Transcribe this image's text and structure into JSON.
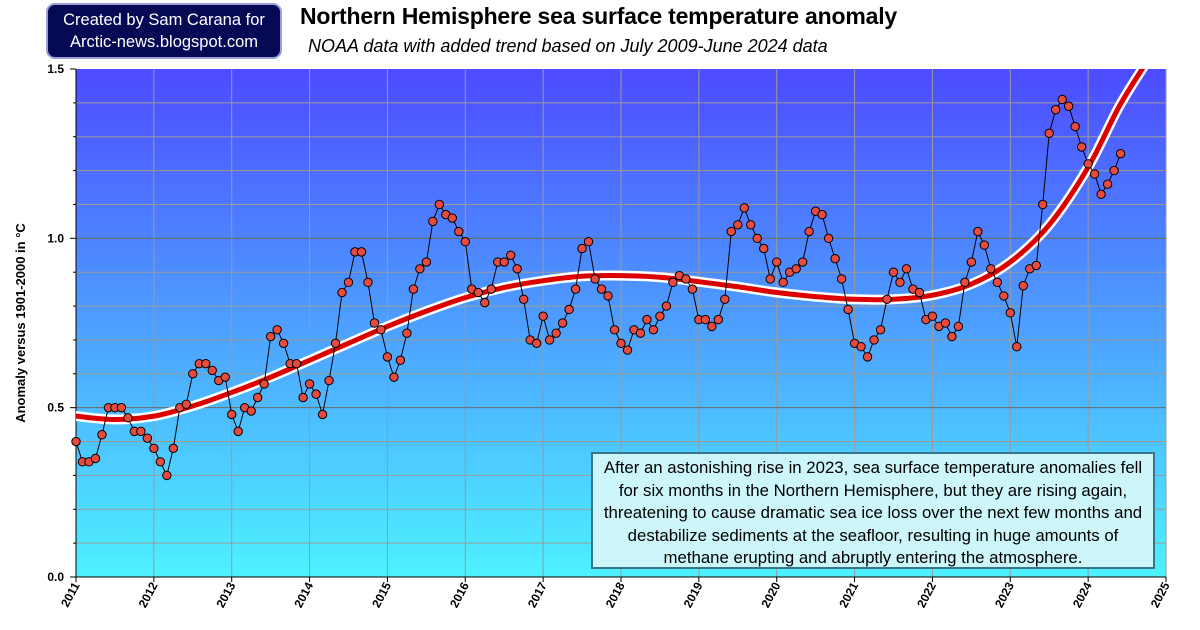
{
  "badge": {
    "line1": "Created by Sam Carana for",
    "line2": "Arctic-news.blogspot.com"
  },
  "colors": {
    "plot_top": "#4d4bff",
    "plot_bottom": "#4df2ff",
    "trend_line": "#dd0000",
    "trend_halo": "#ffffff",
    "marker_fill": "#e84a3e",
    "data_line": "#000000",
    "grid": "#9a9a9a"
  },
  "chart_data": {
    "type": "line",
    "title": "Northern Hemisphere sea surface temperature anomaly",
    "subtitle": "NOAA data with added trend based on July 2009-June 2024 data",
    "xlabel": "",
    "ylabel": "Anomaly versus 1901-2000 in °C",
    "xlim": [
      2011,
      2025
    ],
    "ylim": [
      0,
      1.5
    ],
    "x_ticks": [
      "2011",
      "2012",
      "2013",
      "2014",
      "2015",
      "2016",
      "2017",
      "2018",
      "2019",
      "2020",
      "2021",
      "2022",
      "2023",
      "2024",
      "2025"
    ],
    "y_ticks": [
      "0.0",
      "0.5",
      "1.0",
      "1.5"
    ],
    "grid": true,
    "annotation": "After an astonishing rise in 2023, sea surface temperature anomalies fell for six months in the Northern Hemisphere, but they are rising again, threatening to cause dramatic sea ice loss over the next few months and destabilize sediments at the seafloor, resulting in huge amounts of methane erupting and abruptly entering the atmosphere.",
    "series": [
      {
        "start": "2011-01",
        "values": [
          0.4,
          0.34,
          0.34,
          0.35,
          0.42,
          0.5,
          0.5,
          0.5,
          0.47,
          0.43,
          0.43,
          0.41,
          0.38,
          0.34,
          0.3,
          0.38,
          0.5,
          0.51,
          0.6,
          0.63,
          0.63,
          0.61,
          0.58,
          0.59,
          0.48,
          0.43,
          0.5,
          0.49,
          0.53,
          0.57,
          0.71,
          0.73,
          0.69,
          0.63,
          0.63,
          0.53,
          0.57,
          0.54,
          0.48,
          0.58,
          0.69,
          0.84,
          0.87,
          0.96,
          0.96,
          0.87,
          0.75,
          0.73,
          0.65,
          0.59,
          0.64,
          0.72,
          0.85,
          0.91,
          0.93,
          1.05,
          1.1,
          1.07,
          1.06,
          1.02,
          0.99,
          0.85,
          0.84,
          0.81,
          0.85,
          0.93,
          0.93,
          0.95,
          0.91,
          0.82,
          0.7,
          0.69,
          0.77,
          0.7,
          0.72,
          0.75,
          0.79,
          0.85,
          0.97,
          0.99,
          0.88,
          0.85,
          0.83,
          0.73,
          0.69,
          0.67,
          0.73,
          0.72,
          0.76,
          0.73,
          0.77,
          0.8,
          0.87,
          0.89,
          0.88,
          0.85,
          0.76,
          0.76,
          0.74,
          0.76,
          0.82,
          1.02,
          1.04,
          1.09,
          1.04,
          1.0,
          0.97,
          0.88,
          0.93,
          0.87,
          0.9,
          0.91,
          0.93,
          1.02,
          1.08,
          1.07,
          1.0,
          0.94,
          0.88,
          0.79,
          0.69,
          0.68,
          0.65,
          0.7,
          0.73,
          0.82,
          0.9,
          0.87,
          0.91,
          0.85,
          0.84,
          0.76,
          0.77,
          0.74,
          0.75,
          0.71,
          0.74,
          0.87,
          0.93,
          1.02,
          0.98,
          0.91,
          0.87,
          0.83,
          0.78,
          0.68,
          0.86,
          0.91,
          0.92,
          1.1,
          1.31,
          1.38,
          1.41,
          1.39,
          1.33,
          1.27,
          1.22,
          1.19,
          1.13,
          1.16,
          1.2,
          1.25
        ]
      }
    ],
    "trend": {
      "x": [
        2011.0,
        2011.5,
        2012.0,
        2012.5,
        2013.0,
        2013.5,
        2014.0,
        2014.5,
        2015.0,
        2015.5,
        2016.0,
        2016.5,
        2017.0,
        2017.5,
        2018.0,
        2018.5,
        2019.0,
        2019.5,
        2020.0,
        2020.5,
        2021.0,
        2021.5,
        2022.0,
        2022.5,
        2023.0,
        2023.5,
        2024.0,
        2024.4,
        2024.75
      ],
      "y": [
        0.475,
        0.465,
        0.475,
        0.505,
        0.545,
        0.59,
        0.64,
        0.69,
        0.74,
        0.785,
        0.825,
        0.855,
        0.875,
        0.888,
        0.89,
        0.885,
        0.872,
        0.857,
        0.84,
        0.828,
        0.82,
        0.82,
        0.832,
        0.865,
        0.93,
        1.04,
        1.21,
        1.39,
        1.52
      ]
    }
  }
}
